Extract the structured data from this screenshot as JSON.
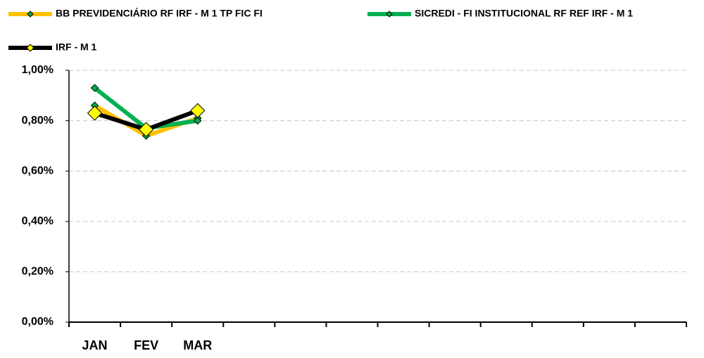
{
  "chart_data": {
    "type": "line",
    "categories": [
      "JAN",
      "FEV",
      "MAR",
      null,
      null,
      null,
      null,
      null,
      null,
      null,
      null,
      null
    ],
    "series": [
      {
        "name": "BB PREVIDENCIÁRIO RF IRF - M 1 TP FIC FI",
        "color": "#FFC000",
        "marker_color": "#00B050",
        "values": [
          0.86,
          0.74,
          0.81,
          null,
          null,
          null,
          null,
          null,
          null,
          null,
          null,
          null
        ]
      },
      {
        "name": "SICREDI - FI INSTITUCIONAL RF REF IRF - M 1",
        "color": "#00B050",
        "marker_color": "#00B050",
        "values": [
          0.93,
          0.77,
          0.8,
          null,
          null,
          null,
          null,
          null,
          null,
          null,
          null,
          null
        ]
      },
      {
        "name": "IRF - M 1",
        "color": "#000000",
        "marker_color": "#FFFF00",
        "values": [
          0.83,
          0.765,
          0.84,
          null,
          null,
          null,
          null,
          null,
          null,
          null,
          null,
          null
        ]
      }
    ],
    "ylim": [
      0,
      1
    ],
    "yticks": [
      {
        "value": 0,
        "label": "0,00%"
      },
      {
        "value": 0.2,
        "label": "0,20%"
      },
      {
        "value": 0.4,
        "label": "0,40%"
      },
      {
        "value": 0.6,
        "label": "0,60%"
      },
      {
        "value": 0.8,
        "label": "0,80%"
      },
      {
        "value": 1,
        "label": "1,00%"
      }
    ],
    "grid": true,
    "legend": "top"
  }
}
